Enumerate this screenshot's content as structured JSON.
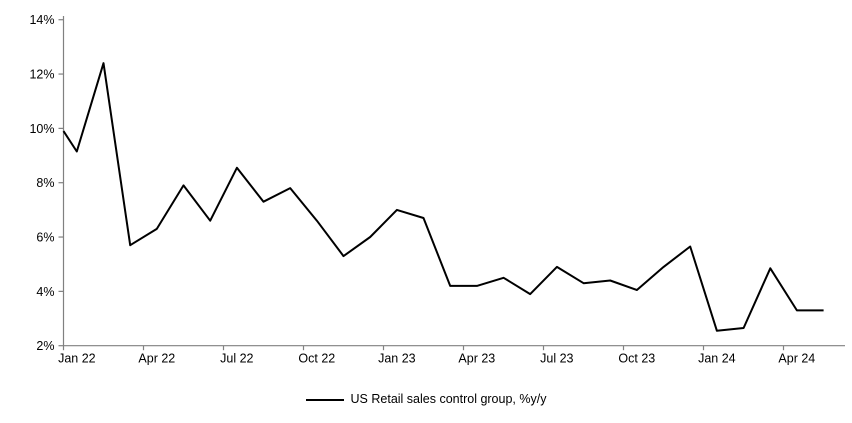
{
  "chart_data": {
    "type": "line",
    "title": "",
    "xlabel": "",
    "ylabel": "",
    "ylim": [
      2,
      14
    ],
    "grid": false,
    "axis_color": "#808080",
    "text_color": "#000000",
    "y_tick_labels": [
      "14%",
      "12%",
      "10%",
      "8%",
      "6%",
      "4%",
      "2%"
    ],
    "x_tick_labels": [
      "Jan 22",
      "Apr 22",
      "Jul 22",
      "Oct 22",
      "Jan 23",
      "Apr 23",
      "Jul 23",
      "Oct 23",
      "Jan 24",
      "Apr 24"
    ],
    "x": [
      "Jan 22",
      "Feb 22",
      "Mar 22",
      "Apr 22",
      "May 22",
      "Jun 22",
      "Jul 22",
      "Aug 22",
      "Sep 22",
      "Oct 22",
      "Nov 22",
      "Dec 22",
      "Jan 23",
      "Feb 23",
      "Mar 23",
      "Apr 23",
      "May 23",
      "Jun 23",
      "Jul 23",
      "Aug 23",
      "Sep 23",
      "Oct 23",
      "Nov 23",
      "Dec 23",
      "Jan 24",
      "Feb 24",
      "Mar 24",
      "Apr 24",
      "May 24"
    ],
    "lead_in_value_at_axis": 9.9,
    "series": [
      {
        "name": "US Retail sales control group, %y/y",
        "color": "#000000",
        "values": [
          9.15,
          12.4,
          5.7,
          6.3,
          7.9,
          6.6,
          8.55,
          7.3,
          7.8,
          6.6,
          5.3,
          6.0,
          7.0,
          6.7,
          4.2,
          4.2,
          4.5,
          3.9,
          4.9,
          4.3,
          4.4,
          4.05,
          4.9,
          5.65,
          2.55,
          2.65,
          4.85,
          3.3,
          3.3
        ]
      }
    ],
    "legend": {
      "position": "bottom-center"
    }
  }
}
